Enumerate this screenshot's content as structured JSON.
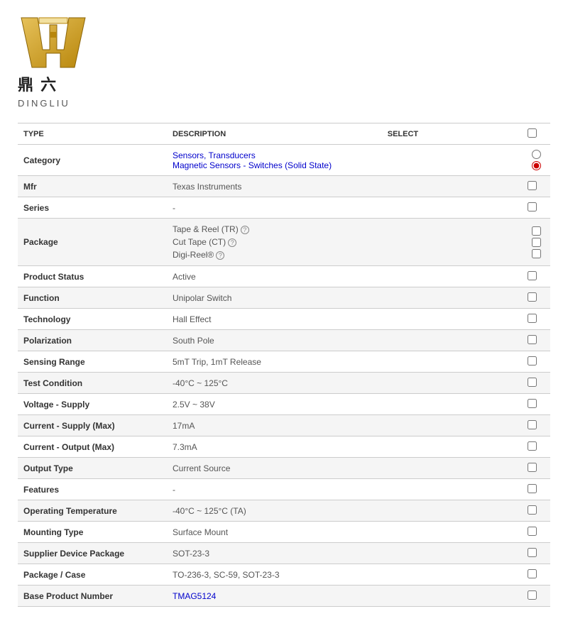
{
  "logo": {
    "brand_name": "DINGLIU",
    "cjk": "鼎 六",
    "colors": {
      "gold_dark": "#b8860b",
      "gold_light": "#e6c15a",
      "cream": "#f2e0a0"
    }
  },
  "headers": {
    "type": "TYPE",
    "description": "DESCRIPTION",
    "select": "SELECT"
  },
  "rows": [
    {
      "type": "Category",
      "desc": "",
      "category_links": [
        "Sensors, Transducers",
        "Magnetic Sensors - Switches (Solid State)"
      ],
      "control": "radio_pair",
      "radio_selected": 1
    },
    {
      "type": "Mfr",
      "desc": "Texas Instruments",
      "control": "checkbox"
    },
    {
      "type": "Series",
      "desc": "-",
      "control": "checkbox"
    },
    {
      "type": "Package",
      "desc": "",
      "package_lines": [
        "Tape & Reel (TR)",
        "Cut Tape (CT)",
        "Digi-Reel®"
      ],
      "control": "check_triple"
    },
    {
      "type": "Product Status",
      "desc": "Active",
      "control": "checkbox"
    },
    {
      "type": "Function",
      "desc": "Unipolar Switch",
      "control": "checkbox"
    },
    {
      "type": "Technology",
      "desc": "Hall Effect",
      "control": "checkbox"
    },
    {
      "type": "Polarization",
      "desc": "South Pole",
      "control": "checkbox"
    },
    {
      "type": "Sensing Range",
      "desc": "5mT Trip, 1mT Release",
      "control": "checkbox"
    },
    {
      "type": "Test Condition",
      "desc": "-40°C ~ 125°C",
      "control": "checkbox"
    },
    {
      "type": "Voltage - Supply",
      "desc": "2.5V ~ 38V",
      "control": "checkbox"
    },
    {
      "type": "Current - Supply (Max)",
      "desc": "17mA",
      "control": "checkbox"
    },
    {
      "type": "Current - Output (Max)",
      "desc": "7.3mA",
      "control": "checkbox"
    },
    {
      "type": "Output Type",
      "desc": "Current Source",
      "control": "checkbox"
    },
    {
      "type": "Features",
      "desc": "-",
      "control": "checkbox"
    },
    {
      "type": "Operating Temperature",
      "desc": "-40°C ~ 125°C (TA)",
      "control": "checkbox"
    },
    {
      "type": "Mounting Type",
      "desc": "Surface Mount",
      "control": "checkbox"
    },
    {
      "type": "Supplier Device Package",
      "desc": "SOT-23-3",
      "control": "checkbox"
    },
    {
      "type": "Package / Case",
      "desc": "TO-236-3, SC-59, SOT-23-3",
      "control": "checkbox"
    },
    {
      "type": "Base Product Number",
      "desc": "",
      "link_text": "TMAG5124",
      "control": "checkbox"
    }
  ],
  "colors": {
    "border": "#ccc",
    "alt_row": "#f5f5f5",
    "link": "#0000cc",
    "radio_fill": "#cc0000"
  }
}
